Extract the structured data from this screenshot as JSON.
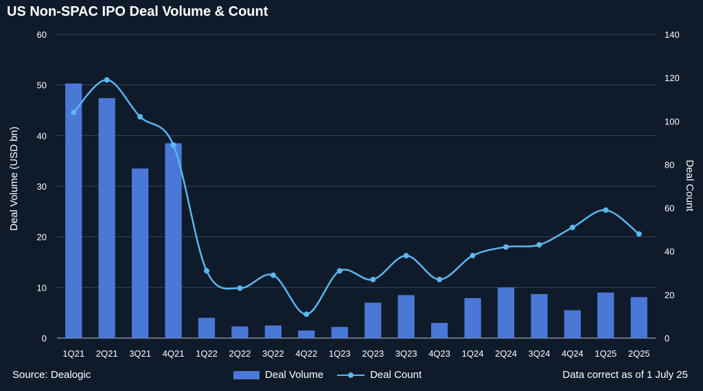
{
  "chart_data": {
    "type": "bar",
    "title": "US Non-SPAC IPO Deal Volume & Count",
    "categories": [
      "1Q21",
      "2Q21",
      "3Q21",
      "4Q21",
      "1Q22",
      "2Q22",
      "3Q22",
      "4Q22",
      "1Q23",
      "2Q23",
      "3Q23",
      "4Q23",
      "1Q24",
      "2Q24",
      "3Q24",
      "4Q24",
      "1Q25",
      "2Q25"
    ],
    "series": [
      {
        "name": "Deal Volume",
        "type": "bar",
        "axis": "left",
        "color": "#4a78d6",
        "values": [
          50.3,
          47.4,
          33.5,
          38.5,
          4.0,
          2.3,
          2.5,
          1.5,
          2.2,
          7.0,
          8.5,
          3.0,
          7.9,
          10.0,
          8.7,
          5.5,
          9.0,
          8.1
        ]
      },
      {
        "name": "Deal Count",
        "type": "line",
        "axis": "right",
        "color": "#5bb8f0",
        "values": [
          104,
          119,
          102,
          89,
          31,
          23,
          29,
          11,
          31,
          27,
          38,
          27,
          38,
          42,
          43,
          51,
          59,
          48
        ]
      }
    ],
    "ylabel": "Deal Volume (USD bn)",
    "y2label": "Deal Count",
    "ylim": [
      0,
      60
    ],
    "y2lim": [
      0,
      140
    ],
    "yticks": [
      "0",
      "10",
      "20",
      "30",
      "40",
      "50",
      "60"
    ],
    "y2ticks": [
      "0",
      "20",
      "40",
      "60",
      "80",
      "100",
      "120",
      "140"
    ],
    "grid": true,
    "legend_position": "bottom"
  },
  "footer": {
    "source": "Source: Dealogic",
    "note": "Data correct as of 1 July 25"
  },
  "colors": {
    "background": "#0f1b2b",
    "gridline": "#3a4658"
  }
}
